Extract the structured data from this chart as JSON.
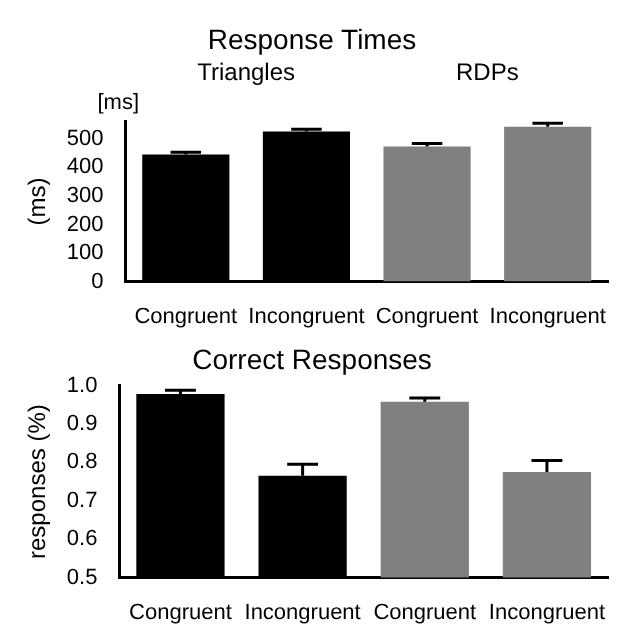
{
  "chart_data": [
    {
      "type": "bar",
      "title": "Response Times",
      "ylabel": "(ms)",
      "annotations": [
        "[ms]",
        "Triangles",
        "RDPs"
      ],
      "categories": [
        "Congruent",
        "Incongruent",
        "Congruent",
        "Incongruent"
      ],
      "values": [
        445,
        525,
        473,
        542
      ],
      "errors": [
        8,
        8,
        10,
        12
      ],
      "colors": [
        "#000000",
        "#000000",
        "#808080",
        "#808080"
      ],
      "ylim": [
        0,
        560
      ],
      "yticks": [
        0,
        100,
        200,
        300,
        400,
        500
      ],
      "grid": false,
      "legend": false
    },
    {
      "type": "bar",
      "title": "Correct Responses",
      "ylabel": "responses (%)",
      "categories": [
        "Congruent",
        "Incongruent",
        "Congruent",
        "Incongruent"
      ],
      "values": [
        0.978,
        0.765,
        0.958,
        0.775
      ],
      "errors": [
        0.01,
        0.03,
        0.01,
        0.03
      ],
      "colors": [
        "#000000",
        "#000000",
        "#808080",
        "#808080"
      ],
      "ylim": [
        0.5,
        1.0
      ],
      "yticks": [
        0.5,
        0.6,
        0.7,
        0.8,
        0.9,
        {
          "value": 1,
          "label": "1.0"
        }
      ],
      "grid": false,
      "legend": false
    }
  ]
}
